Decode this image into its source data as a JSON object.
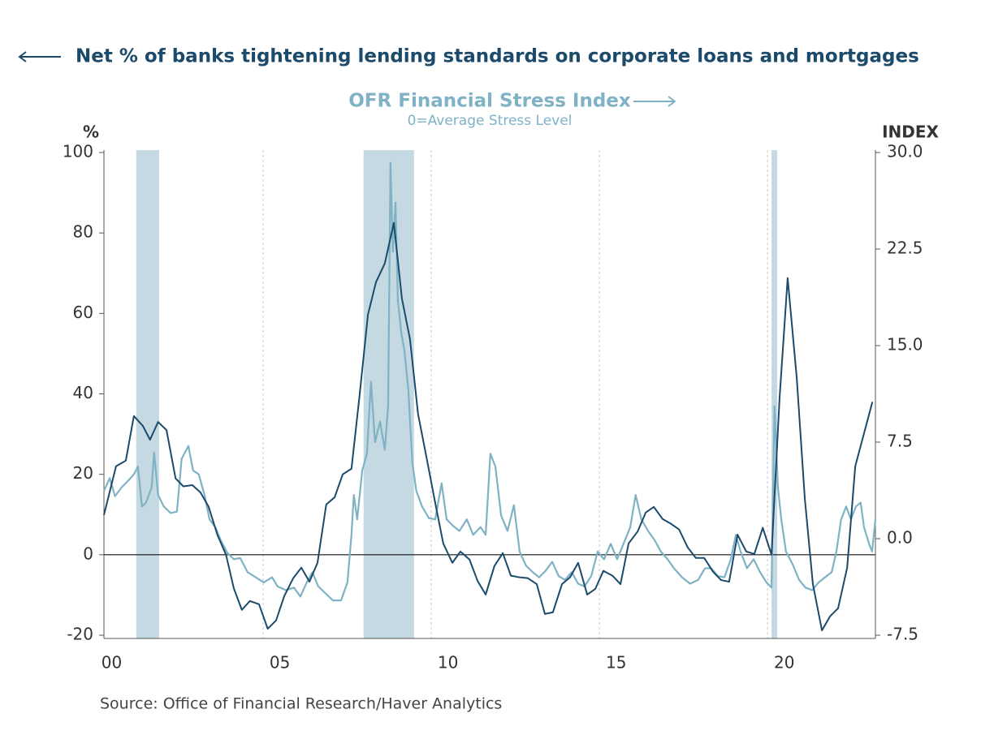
{
  "chart_data": {
    "type": "line",
    "source": "Source:  Office of Financial Research/Haver Analytics",
    "subtitle": "0=Average Stress Level",
    "y_label": "%",
    "y2_label": "INDEX",
    "xlim": [
      2000.27,
      2023.21
    ],
    "xticks": [
      {
        "value": 2000,
        "label": "00"
      },
      {
        "value": 2005,
        "label": "05"
      },
      {
        "value": 2010,
        "label": "10"
      },
      {
        "value": 2015,
        "label": "15"
      },
      {
        "value": 2020,
        "label": "20"
      }
    ],
    "ylim": [
      -20,
      100
    ],
    "yticks": [
      -20,
      0,
      20,
      40,
      60,
      80,
      100
    ],
    "y2lim": [
      -7.5,
      30
    ],
    "y2ticks": [
      -7.5,
      {
        "value": 0,
        "label": "0.0"
      },
      7.5,
      {
        "value": 15,
        "label": "15.0"
      },
      22.5,
      {
        "value": 30,
        "label": "30.0"
      }
    ],
    "grid": "x",
    "zero_line": true,
    "shaded_periods": [
      {
        "start": 2001.23,
        "end": 2001.91
      },
      {
        "start": 2007.99,
        "end": 2009.49
      },
      {
        "start": 2020.12,
        "end": 2020.29
      }
    ],
    "shade_color": "#c5d9e2",
    "series": [
      {
        "name": "Net % of banks tightening lending standards on corporate loans and mortgages",
        "color": "#1b4a6b",
        "axis": "y",
        "x": [
          2000.27,
          2000.63,
          2000.92,
          2001.16,
          2001.43,
          2001.64,
          2001.88,
          2002.13,
          2002.4,
          2002.63,
          2002.9,
          2003.14,
          2003.38,
          2003.65,
          2003.9,
          2004.13,
          2004.37,
          2004.61,
          2004.88,
          2005.14,
          2005.39,
          2005.63,
          2005.9,
          2006.14,
          2006.38,
          2006.62,
          2006.88,
          2007.13,
          2007.37,
          2007.63,
          2007.87,
          2008.12,
          2008.36,
          2008.62,
          2008.89,
          2009.13,
          2009.37,
          2009.61,
          2009.88,
          2010.12,
          2010.36,
          2010.63,
          2010.87,
          2011.14,
          2011.38,
          2011.62,
          2011.88,
          2012.13,
          2012.37,
          2012.63,
          2012.87,
          2013.14,
          2013.38,
          2013.62,
          2013.89,
          2014.13,
          2014.37,
          2014.64,
          2014.88,
          2015.12,
          2015.39,
          2015.63,
          2015.87,
          2016.14,
          2016.38,
          2016.62,
          2016.88,
          2017.13,
          2017.37,
          2017.63,
          2017.87,
          2018.12,
          2018.38,
          2018.62,
          2018.86,
          2019.11,
          2019.37,
          2019.61,
          2019.86,
          2020.12,
          2020.36,
          2020.6,
          2020.87,
          2021.11,
          2021.35,
          2021.62,
          2021.86,
          2022.1,
          2022.37,
          2022.61,
          2023.12
        ],
        "values": [
          9.9,
          22,
          23.4,
          34.5,
          32,
          28.6,
          33,
          31,
          19,
          17,
          17.3,
          15.5,
          12,
          4.8,
          0,
          -8.3,
          -13.7,
          -11.5,
          -12.3,
          -18.4,
          -16.3,
          -10.3,
          -5.8,
          -3.2,
          -6.7,
          -2,
          12.5,
          14.3,
          20,
          21.4,
          39.5,
          59.7,
          67.8,
          72.4,
          82.5,
          63.7,
          53.6,
          35,
          23.4,
          12.9,
          2.8,
          -2,
          0.8,
          -1.2,
          -6.5,
          -9.9,
          -2.8,
          0.4,
          -5.2,
          -5.6,
          -5.8,
          -7.3,
          -14.7,
          -14.3,
          -7.3,
          -5.6,
          -2,
          -9.9,
          -8.5,
          -4,
          -5.2,
          -7.3,
          2.8,
          5.8,
          10.5,
          11.9,
          8.9,
          7.7,
          6.3,
          1.8,
          -0.8,
          -0.8,
          -4.2,
          -6.3,
          -6.7,
          5,
          0.8,
          0.2,
          6.7,
          0,
          39,
          68.8,
          44,
          14,
          -7.3,
          -18.8,
          -15.3,
          -13.3,
          -3.2,
          22,
          38
        ]
      },
      {
        "name": "OFR Financial Stress Index",
        "color": "#7fb2c5",
        "axis": "y2",
        "x": [
          2000.27,
          2000.44,
          2000.6,
          2000.8,
          2000.99,
          2001.16,
          2001.28,
          2001.4,
          2001.52,
          2001.69,
          2001.76,
          2001.88,
          2002.05,
          2002.25,
          2002.44,
          2002.58,
          2002.78,
          2002.92,
          2003.09,
          2003.26,
          2003.41,
          2003.58,
          2003.74,
          2003.94,
          2004.13,
          2004.32,
          2004.54,
          2004.78,
          2005.02,
          2005.27,
          2005.43,
          2005.68,
          2005.92,
          2006.11,
          2006.3,
          2006.47,
          2006.64,
          2006.84,
          2007.08,
          2007.32,
          2007.51,
          2007.63,
          2007.7,
          2007.8,
          2007.95,
          2008.09,
          2008.21,
          2008.33,
          2008.48,
          2008.62,
          2008.72,
          2008.79,
          2008.86,
          2008.94,
          2009.01,
          2009.11,
          2009.2,
          2009.32,
          2009.44,
          2009.56,
          2009.73,
          2009.93,
          2010.12,
          2010.31,
          2010.46,
          2010.65,
          2010.84,
          2011.06,
          2011.25,
          2011.47,
          2011.62,
          2011.76,
          2011.91,
          2012.08,
          2012.27,
          2012.46,
          2012.63,
          2012.82,
          2013.02,
          2013.21,
          2013.4,
          2013.6,
          2013.79,
          2013.98,
          2014.18,
          2014.37,
          2014.56,
          2014.76,
          2014.95,
          2015.14,
          2015.34,
          2015.53,
          2015.72,
          2015.92,
          2016.08,
          2016.25,
          2016.45,
          2016.64,
          2016.83,
          2017.03,
          2017.22,
          2017.46,
          2017.7,
          2017.94,
          2018.14,
          2018.33,
          2018.52,
          2018.72,
          2018.91,
          2019.06,
          2019.2,
          2019.39,
          2019.59,
          2019.78,
          2019.97,
          2020.12,
          2020.21,
          2020.31,
          2020.41,
          2020.55,
          2020.75,
          2020.94,
          2021.13,
          2021.33,
          2021.52,
          2021.71,
          2021.91,
          2022.05,
          2022.19,
          2022.34,
          2022.48,
          2022.63,
          2022.77,
          2022.87,
          2023.02,
          2023.11,
          2023.21
        ],
        "values": [
          3.7,
          4.7,
          3.3,
          4.0,
          4.5,
          5.0,
          5.6,
          2.5,
          2.8,
          4.0,
          6.7,
          3.4,
          2.5,
          2.0,
          2.1,
          6.2,
          7.2,
          5.3,
          5.0,
          3.4,
          1.5,
          0.9,
          -0.1,
          -1.1,
          -1.6,
          -1.5,
          -2.6,
          -3.0,
          -3.4,
          -3.0,
          -3.7,
          -4.0,
          -3.8,
          -4.5,
          -3.4,
          -2.6,
          -3.7,
          -4.2,
          -4.8,
          -4.8,
          -3.4,
          0.3,
          3.4,
          1.5,
          5.3,
          6.6,
          12.2,
          7.5,
          9.1,
          6.9,
          10.3,
          29.2,
          22.3,
          26.1,
          18.5,
          16.0,
          14.7,
          11.6,
          5.9,
          3.7,
          2.5,
          1.6,
          1.5,
          4.3,
          1.5,
          1.0,
          0.6,
          1.5,
          0.3,
          0.9,
          0.3,
          6.6,
          5.6,
          1.8,
          0.6,
          2.6,
          -1.0,
          -2.1,
          -2.6,
          -3.0,
          -2.5,
          -1.8,
          -2.9,
          -3.2,
          -2.6,
          -3.5,
          -3.7,
          -2.9,
          -1.0,
          -1.6,
          -0.4,
          -1.6,
          -0.4,
          0.9,
          3.4,
          1.5,
          0.6,
          -0.1,
          -1.0,
          -1.6,
          -2.3,
          -3.0,
          -3.5,
          -3.2,
          -2.3,
          -2.3,
          -2.9,
          -3.0,
          -1.6,
          0.3,
          -1.0,
          -2.3,
          -1.6,
          -2.6,
          -3.4,
          -3.8,
          10.3,
          4.0,
          1.5,
          -1.0,
          -2.0,
          -3.2,
          -3.8,
          -4.0,
          -3.4,
          -3.0,
          -2.6,
          -1.0,
          1.5,
          2.5,
          1.5,
          2.5,
          2.8,
          0.9,
          -0.4,
          -1.0,
          1.5
        ]
      }
    ]
  }
}
